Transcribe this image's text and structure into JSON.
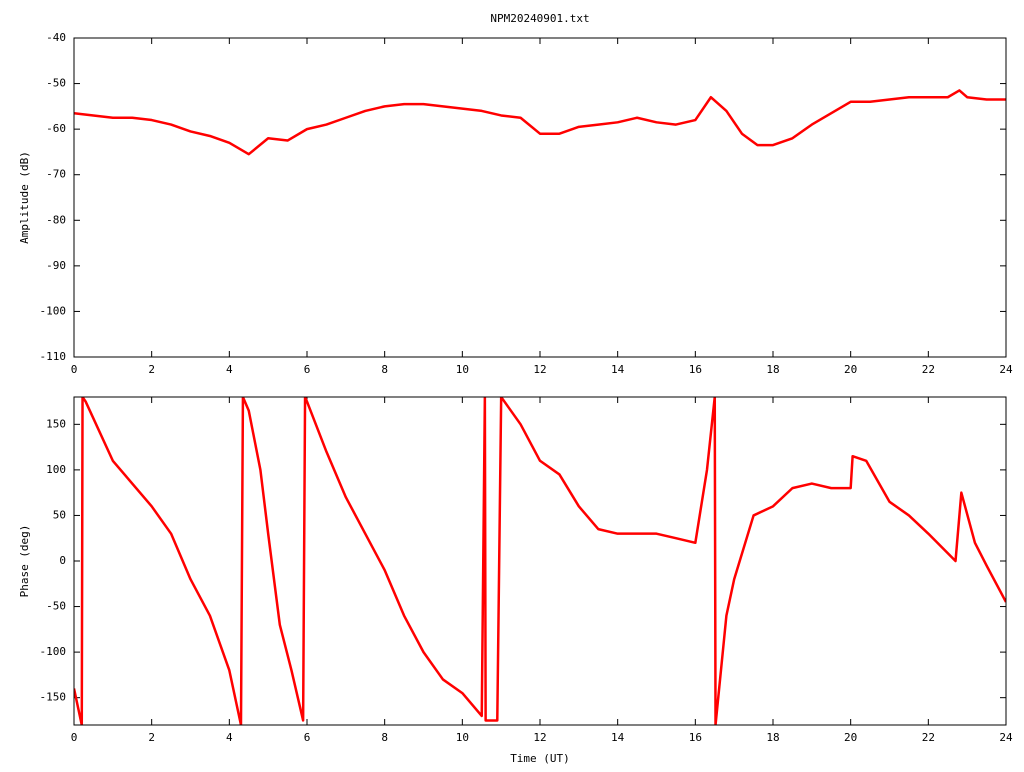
{
  "chart_data": [
    {
      "type": "line",
      "title": "NPM20240901.txt",
      "ylabel": "Amplitude (dB)",
      "color": "#ff0000",
      "xlim": [
        0,
        24
      ],
      "xticks": [
        0,
        2,
        4,
        6,
        8,
        10,
        12,
        14,
        16,
        18,
        20,
        22,
        24
      ],
      "ylim": [
        -110,
        -40
      ],
      "yticks": [
        -40,
        -50,
        -60,
        -70,
        -80,
        -90,
        -100,
        -110
      ],
      "x": [
        0,
        0.5,
        1,
        1.5,
        2,
        2.5,
        3,
        3.5,
        4,
        4.5,
        5,
        5.5,
        6,
        6.5,
        7,
        7.5,
        8,
        8.5,
        9,
        9.5,
        10,
        10.5,
        11,
        11.5,
        12,
        12.5,
        13,
        13.5,
        14,
        14.5,
        15,
        15.5,
        16,
        16.4,
        16.8,
        17.2,
        17.6,
        18,
        18.5,
        19,
        19.5,
        20,
        20.5,
        21,
        21.5,
        22,
        22.5,
        22.8,
        23,
        23.5,
        24
      ],
      "values": [
        -56.5,
        -57,
        -57.5,
        -57.5,
        -58,
        -59,
        -60.5,
        -61.5,
        -63,
        -65.5,
        -62,
        -62.5,
        -60,
        -59,
        -57.5,
        -56,
        -55,
        -54.5,
        -54.5,
        -55,
        -55.5,
        -56,
        -57,
        -57.5,
        -61,
        -61,
        -59.5,
        -59,
        -58.5,
        -57.5,
        -58.5,
        -59,
        -58,
        -53,
        -56,
        -61,
        -63.5,
        -63.5,
        -62,
        -59,
        -56.5,
        -54,
        -54,
        -53.5,
        -53,
        -53,
        -53,
        -51.5,
        -53,
        -53.5,
        -53.5
      ]
    },
    {
      "type": "line",
      "xlabel": "Time (UT)",
      "ylabel": "Phase (deg)",
      "color": "#ff0000",
      "xlim": [
        0,
        24
      ],
      "xticks": [
        0,
        2,
        4,
        6,
        8,
        10,
        12,
        14,
        16,
        18,
        20,
        22,
        24
      ],
      "ylim": [
        -180,
        180
      ],
      "yticks": [
        -150,
        -100,
        -50,
        0,
        50,
        100,
        150
      ],
      "x": [
        0,
        0.2,
        0.22,
        0.3,
        1,
        2,
        2.5,
        3,
        3.5,
        4,
        4.3,
        4.35,
        4.5,
        4.8,
        5,
        5.3,
        5.6,
        5.9,
        5.95,
        6,
        6.5,
        7,
        7.5,
        8,
        8.5,
        9,
        9.5,
        10,
        10.5,
        10.58,
        10.6,
        10.9,
        11,
        11.5,
        12,
        12.5,
        13,
        13.5,
        14,
        14.5,
        15,
        15.5,
        16,
        16.3,
        16.5,
        16.52,
        16.8,
        17,
        17.5,
        18,
        18.5,
        19,
        19.5,
        20,
        20.05,
        20.4,
        21,
        21.5,
        22,
        22.7,
        22.85,
        23.2,
        23.5,
        24
      ],
      "values": [
        -140,
        -180,
        180,
        175,
        110,
        60,
        30,
        -20,
        -60,
        -120,
        -180,
        180,
        165,
        100,
        30,
        -70,
        -120,
        -175,
        180,
        175,
        120,
        70,
        30,
        -10,
        -60,
        -100,
        -130,
        -145,
        -170,
        180,
        -175,
        -175,
        180,
        150,
        110,
        95,
        60,
        35,
        30,
        30,
        30,
        25,
        20,
        100,
        180,
        -180,
        -60,
        -20,
        50,
        60,
        80,
        85,
        80,
        80,
        115,
        110,
        65,
        50,
        30,
        0,
        75,
        20,
        -5,
        -45
      ]
    }
  ]
}
